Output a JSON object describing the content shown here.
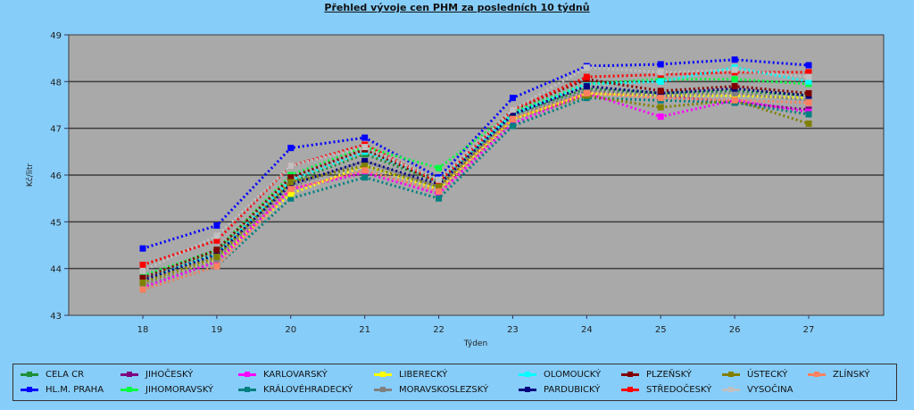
{
  "chart_data": {
    "type": "line",
    "title": "Přehled vývoje cen PHM za posledních 10 týdnů",
    "xlabel": "Týden",
    "ylabel": "Kč/litr",
    "x": [
      18,
      19,
      20,
      21,
      22,
      23,
      24,
      25,
      26,
      27
    ],
    "ylim": [
      43,
      49
    ],
    "yticks": [
      43,
      44,
      45,
      46,
      47,
      48,
      49
    ],
    "grid": true,
    "legend_position": "bottom",
    "series": [
      {
        "name": "CELA CR",
        "color": "#1f8f3a",
        "values": [
          43.75,
          44.35,
          45.85,
          46.45,
          45.85,
          47.3,
          47.85,
          47.75,
          47.8,
          47.7
        ]
      },
      {
        "name": "HL.M. PRAHA",
        "color": "#0000ff",
        "values": [
          44.43,
          44.92,
          46.58,
          46.8,
          45.95,
          47.65,
          48.33,
          48.37,
          48.47,
          48.35
        ]
      },
      {
        "name": "JIHOČESKÝ",
        "color": "#800080",
        "values": [
          43.6,
          44.15,
          45.7,
          46.05,
          45.6,
          47.2,
          47.8,
          47.7,
          47.55,
          47.4
        ]
      },
      {
        "name": "JIHOMORAVSKÝ",
        "color": "#00ff40",
        "values": [
          43.85,
          44.4,
          46.0,
          46.6,
          46.15,
          47.35,
          47.95,
          48.05,
          48.05,
          47.95
        ]
      },
      {
        "name": "KARLOVARSKÝ",
        "color": "#ff00ff",
        "values": [
          43.6,
          44.15,
          45.7,
          46.05,
          45.6,
          47.1,
          47.75,
          47.25,
          47.6,
          47.35
        ]
      },
      {
        "name": "KRÁLOVÉHRADECKÝ",
        "color": "#008080",
        "values": [
          43.55,
          44.05,
          45.5,
          45.95,
          45.5,
          47.05,
          47.65,
          47.6,
          47.55,
          47.3
        ]
      },
      {
        "name": "LIBERECKÝ",
        "color": "#ffff00",
        "values": [
          43.7,
          44.2,
          45.6,
          46.2,
          45.7,
          47.2,
          47.75,
          47.7,
          47.7,
          47.65
        ]
      },
      {
        "name": "MORAVSKOSLEZSKÝ",
        "color": "#808080",
        "values": [
          43.65,
          44.2,
          45.75,
          46.3,
          45.75,
          47.25,
          47.8,
          47.7,
          47.75,
          47.6
        ]
      },
      {
        "name": "OLOMOUCKÝ",
        "color": "#00ffff",
        "values": [
          43.8,
          44.3,
          45.9,
          46.5,
          45.9,
          47.3,
          47.95,
          48.0,
          48.3,
          48.0
        ]
      },
      {
        "name": "PARDUBICKÝ",
        "color": "#000080",
        "values": [
          43.75,
          44.3,
          45.8,
          46.3,
          45.8,
          47.3,
          47.9,
          47.75,
          47.85,
          47.7
        ]
      },
      {
        "name": "PLZEŇSKÝ",
        "color": "#800000",
        "values": [
          43.8,
          44.4,
          45.95,
          46.55,
          45.85,
          47.4,
          48.05,
          47.8,
          47.9,
          47.75
        ]
      },
      {
        "name": "STŘEDOČESKÝ",
        "color": "#ff0000",
        "values": [
          44.08,
          44.6,
          46.2,
          46.65,
          45.85,
          47.4,
          48.1,
          48.15,
          48.2,
          48.2
        ]
      },
      {
        "name": "ÚSTECKÝ",
        "color": "#808000",
        "values": [
          43.7,
          44.25,
          45.85,
          46.2,
          45.75,
          47.2,
          47.7,
          47.45,
          47.6,
          47.1
        ]
      },
      {
        "name": "VYSOČINA",
        "color": "#c0c0c0",
        "values": [
          43.95,
          44.7,
          46.2,
          46.6,
          45.9,
          47.4,
          48.3,
          48.2,
          48.25,
          48.1
        ]
      },
      {
        "name": "ZLÍNSKÝ",
        "color": "#ff8060",
        "values": [
          43.55,
          44.05,
          45.7,
          46.1,
          45.65,
          47.2,
          47.75,
          47.65,
          47.6,
          47.55
        ]
      }
    ]
  }
}
